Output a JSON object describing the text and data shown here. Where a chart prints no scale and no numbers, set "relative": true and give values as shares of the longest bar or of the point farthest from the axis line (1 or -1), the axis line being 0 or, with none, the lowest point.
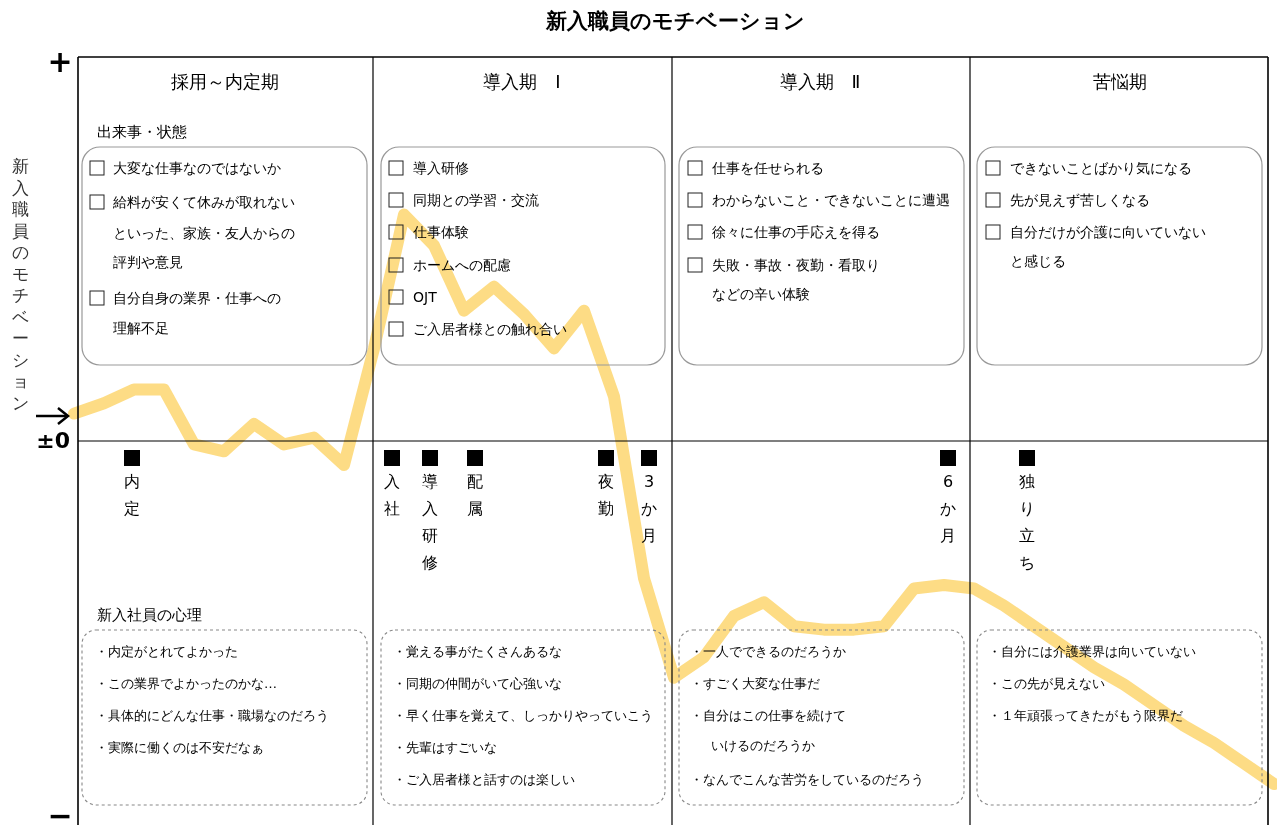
{
  "chart_data": {
    "type": "line",
    "relative": true,
    "grid": "x",
    "title": "新入職員のモチベーション",
    "ylabel": "新入職員のモチベーション",
    "categories": [
      null,
      null,
      null,
      null,
      null,
      null,
      null,
      null,
      null,
      null,
      null,
      null,
      null,
      null,
      null,
      null,
      null,
      null,
      null,
      null,
      null,
      null,
      null,
      null,
      null,
      null,
      null,
      null,
      null,
      null,
      null,
      null,
      null,
      null,
      null,
      null,
      null,
      null,
      null,
      null,
      null
    ],
    "series": [
      {
        "color": "#fdd670",
        "values": [
          0.08,
          0.11,
          0.15,
          0.15,
          -0.01,
          -0.03,
          0.05,
          -0.01,
          0.01,
          -0.07,
          0.27,
          0.66,
          0.57,
          0.38,
          0.45,
          0.37,
          0.27,
          0.38,
          0.13,
          -0.4,
          -0.69,
          -0.63,
          -0.51,
          -0.47,
          -0.54,
          -0.55,
          -0.55,
          -0.54,
          -0.43,
          -0.42,
          -0.43,
          -0.48,
          -0.54,
          -0.6,
          -0.66,
          -0.71,
          -0.77,
          -0.83,
          -0.88,
          -0.94,
          -1
        ]
      }
    ],
    "ref_lines": [
      {
        "axis": "y",
        "value": 0,
        "label": "±0"
      }
    ],
    "annotations": [
      "採用～内定期",
      "導入期　Ⅰ",
      "導入期　Ⅱ",
      "苦悩期",
      "出来事・状態",
      "大変な仕事なのではないか",
      "給料が安くて休みが取れない",
      "といった、家族・友人からの",
      "評判や意見",
      "自分自身の業界・仕事への",
      "理解不足",
      "導入研修",
      "同期との学習・交流",
      "仕事体験",
      "ホームへの配慮",
      "OJT",
      "ご入居者様との触れ合い",
      "仕事を任せられる",
      "わからないこと・できないことに遭遇",
      "徐々に仕事の手応えを得る",
      "失敗・事故・夜勤・看取り",
      "などの辛い体験",
      "できないことばかり気になる",
      "先が見えず苦しくなる",
      "自分だけが介護に向いていない",
      "と感じる",
      "内定",
      "入社",
      "導入研修",
      "配属",
      "夜勤",
      "3か月",
      "6か月",
      "独り立ち",
      "新入社員の心理",
      "・内定がとれてよかった",
      "・この業界でよかったのかな…",
      "・具体的にどんな仕事・職場なのだろう",
      "・実際に働くのは不安だなぁ",
      "・覚える事がたくさんあるな",
      "・同期の仲間がいて心強いな",
      "・早く仕事を覚えて、しっかりやっていこう",
      "・先輩はすごいな",
      "・ご入居者様と話すのは楽しい",
      "・一人でできるのだろうか",
      "・すごく大変な仕事だ",
      "・自分はこの仕事を続けて",
      "いけるのだろうか",
      "・なんでこんな苦労をしているのだろう",
      "・自分には介護業界は向いていない",
      "・この先が見えない",
      "・１年頑張ってきたがもう限界だ",
      "+",
      "−"
    ]
  }
}
